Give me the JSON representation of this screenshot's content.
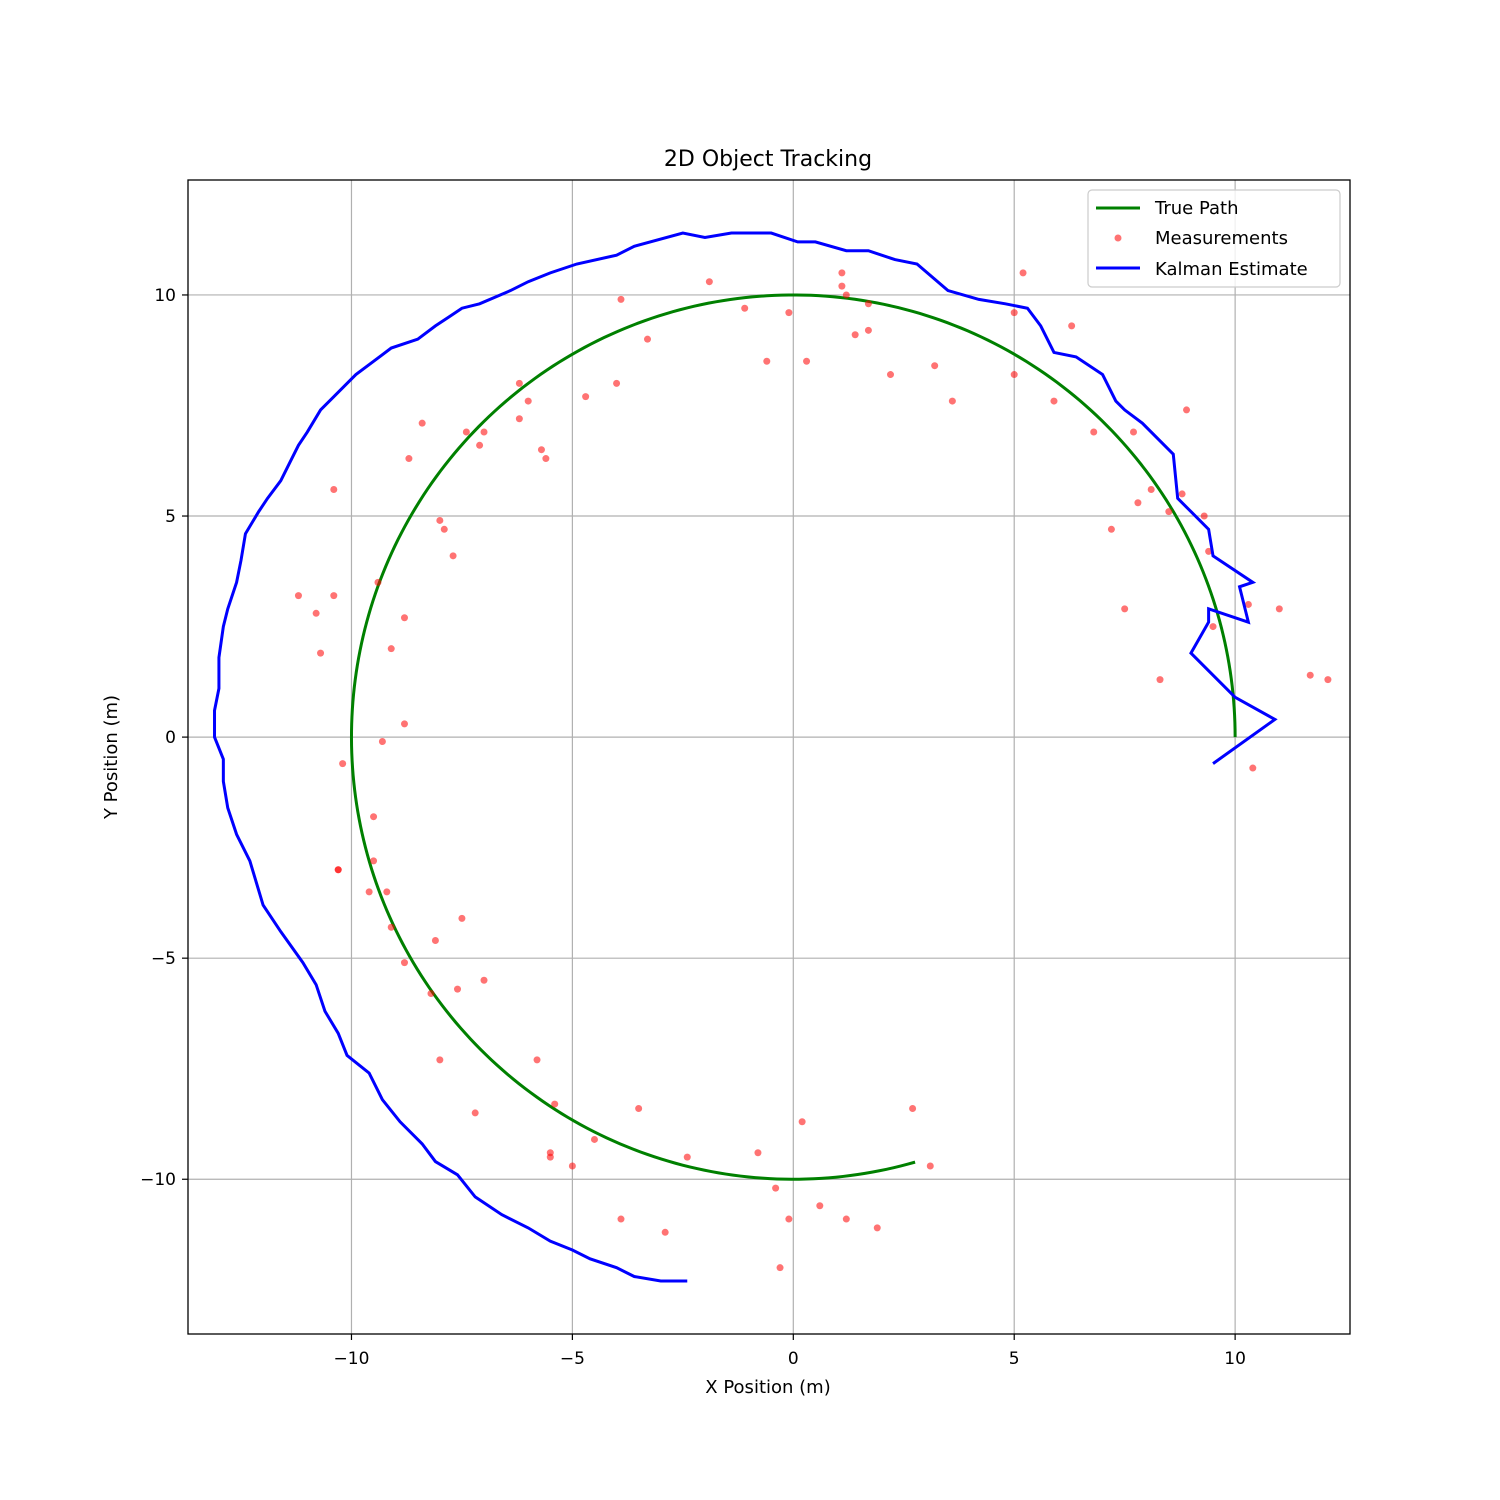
{
  "chart_data": {
    "type": "line",
    "title": "2D Object Tracking",
    "xlabel": "X Position (m)",
    "ylabel": "Y Position (m)",
    "xlim": [
      -13.7,
      12.6
    ],
    "ylim": [
      -13.5,
      12.6
    ],
    "xticks": [
      -10,
      -5,
      0,
      5,
      10
    ],
    "yticks": [
      -10,
      -5,
      0,
      5,
      10
    ],
    "xtick_labels": [
      "−10",
      "−5",
      "0",
      "5",
      "10"
    ],
    "ytick_labels": [
      "−10",
      "−5",
      "0",
      "5",
      "10"
    ],
    "grid": true,
    "legend_position": "top-right",
    "colors": {
      "true_path": "#008000",
      "measurements": "#ff0000",
      "kalman": "#0000ff"
    },
    "series": [
      {
        "name": "True Path",
        "kind": "line",
        "radius": 10,
        "angle_start_deg": 0,
        "angle_end_deg": 286
      },
      {
        "name": "Measurements",
        "kind": "scatter",
        "points": [
          [
            1.1,
            10.5
          ],
          [
            1.1,
            10.2
          ],
          [
            1.2,
            10.0
          ],
          [
            5.2,
            10.5
          ],
          [
            -1.9,
            10.3
          ],
          [
            -3.9,
            9.9
          ],
          [
            -1.1,
            9.7
          ],
          [
            -0.1,
            9.6
          ],
          [
            5.0,
            9.6
          ],
          [
            6.3,
            9.3
          ],
          [
            1.4,
            9.1
          ],
          [
            1.7,
            9.2
          ],
          [
            1.7,
            9.8
          ],
          [
            -3.3,
            9.0
          ],
          [
            -0.6,
            8.5
          ],
          [
            0.3,
            8.5
          ],
          [
            3.2,
            8.4
          ],
          [
            2.2,
            8.2
          ],
          [
            5.0,
            8.2
          ],
          [
            -4.0,
            8.0
          ],
          [
            -6.2,
            8.0
          ],
          [
            -4.7,
            7.7
          ],
          [
            3.6,
            7.6
          ],
          [
            5.9,
            7.6
          ],
          [
            -6.0,
            7.6
          ],
          [
            -6.2,
            7.2
          ],
          [
            -8.4,
            7.1
          ],
          [
            -7.4,
            6.9
          ],
          [
            -7.0,
            6.9
          ],
          [
            -7.1,
            6.6
          ],
          [
            6.8,
            6.9
          ],
          [
            7.7,
            6.9
          ],
          [
            8.9,
            7.4
          ],
          [
            -5.7,
            6.5
          ],
          [
            -5.6,
            6.3
          ],
          [
            -8.7,
            6.3
          ],
          [
            -10.4,
            5.6
          ],
          [
            8.1,
            5.6
          ],
          [
            8.8,
            5.5
          ],
          [
            7.8,
            5.3
          ],
          [
            8.5,
            5.1
          ],
          [
            9.3,
            5.0
          ],
          [
            -8.0,
            4.9
          ],
          [
            -7.9,
            4.7
          ],
          [
            7.2,
            4.7
          ],
          [
            -7.7,
            4.1
          ],
          [
            9.4,
            4.2
          ],
          [
            -9.4,
            3.5
          ],
          [
            -11.2,
            3.2
          ],
          [
            -10.4,
            3.2
          ],
          [
            -10.8,
            2.8
          ],
          [
            -8.8,
            2.7
          ],
          [
            7.5,
            2.9
          ],
          [
            10.3,
            3.0
          ],
          [
            11.0,
            2.9
          ],
          [
            9.5,
            2.5
          ],
          [
            -9.1,
            2.0
          ],
          [
            -10.7,
            1.9
          ],
          [
            8.3,
            1.3
          ],
          [
            11.7,
            1.4
          ],
          [
            12.1,
            1.3
          ],
          [
            -8.8,
            0.3
          ],
          [
            -9.3,
            -0.1
          ],
          [
            -10.2,
            -0.6
          ],
          [
            10.4,
            -0.7
          ],
          [
            -9.5,
            -1.8
          ],
          [
            -9.5,
            -2.8
          ],
          [
            -10.3,
            -3.0
          ],
          [
            -10.3,
            -3.0
          ],
          [
            -9.6,
            -3.5
          ],
          [
            -9.2,
            -3.5
          ],
          [
            -9.1,
            -4.3
          ],
          [
            -7.5,
            -4.1
          ],
          [
            -8.1,
            -4.6
          ],
          [
            -8.8,
            -5.1
          ],
          [
            -7.0,
            -5.5
          ],
          [
            -7.6,
            -5.7
          ],
          [
            -8.2,
            -5.8
          ],
          [
            -8.0,
            -7.3
          ],
          [
            -5.8,
            -7.3
          ],
          [
            -7.2,
            -8.5
          ],
          [
            -5.4,
            -8.3
          ],
          [
            -3.5,
            -8.4
          ],
          [
            2.7,
            -8.4
          ],
          [
            0.2,
            -8.7
          ],
          [
            -4.5,
            -9.1
          ],
          [
            -5.5,
            -9.4
          ],
          [
            -5.5,
            -9.5
          ],
          [
            -2.4,
            -9.5
          ],
          [
            -0.8,
            -9.4
          ],
          [
            -5.0,
            -9.7
          ],
          [
            3.1,
            -9.7
          ],
          [
            -0.4,
            -10.2
          ],
          [
            -3.9,
            -10.9
          ],
          [
            -0.1,
            -10.9
          ],
          [
            0.6,
            -10.6
          ],
          [
            1.2,
            -10.9
          ],
          [
            -2.9,
            -11.2
          ],
          [
            1.9,
            -11.1
          ],
          [
            -0.3,
            -12.0
          ]
        ]
      },
      {
        "name": "Kalman Estimate",
        "kind": "line",
        "points": [
          [
            9.5,
            -0.6
          ],
          [
            10.9,
            0.4
          ],
          [
            10.0,
            0.9
          ],
          [
            9.0,
            1.9
          ],
          [
            9.4,
            2.6
          ],
          [
            9.4,
            2.9
          ],
          [
            10.3,
            2.6
          ],
          [
            10.1,
            3.4
          ],
          [
            10.4,
            3.5
          ],
          [
            9.5,
            4.1
          ],
          [
            9.4,
            4.7
          ],
          [
            9.0,
            5.1
          ],
          [
            8.7,
            5.4
          ],
          [
            8.6,
            6.4
          ],
          [
            7.9,
            7.1
          ],
          [
            7.5,
            7.4
          ],
          [
            7.3,
            7.6
          ],
          [
            7.0,
            8.2
          ],
          [
            6.4,
            8.6
          ],
          [
            5.9,
            8.7
          ],
          [
            5.6,
            9.3
          ],
          [
            5.3,
            9.7
          ],
          [
            4.8,
            9.8
          ],
          [
            4.2,
            9.9
          ],
          [
            3.5,
            10.1
          ],
          [
            2.8,
            10.7
          ],
          [
            2.3,
            10.8
          ],
          [
            1.7,
            11.0
          ],
          [
            1.2,
            11.0
          ],
          [
            0.5,
            11.2
          ],
          [
            0.1,
            11.2
          ],
          [
            -0.5,
            11.4
          ],
          [
            -1.4,
            11.4
          ],
          [
            -2.0,
            11.3
          ],
          [
            -2.5,
            11.4
          ],
          [
            -3.6,
            11.1
          ],
          [
            -4.0,
            10.9
          ],
          [
            -4.9,
            10.7
          ],
          [
            -5.5,
            10.5
          ],
          [
            -6.0,
            10.3
          ],
          [
            -6.4,
            10.1
          ],
          [
            -7.1,
            9.8
          ],
          [
            -7.5,
            9.7
          ],
          [
            -7.8,
            9.5
          ],
          [
            -8.1,
            9.3
          ],
          [
            -8.5,
            9.0
          ],
          [
            -9.1,
            8.8
          ],
          [
            -9.5,
            8.5
          ],
          [
            -9.9,
            8.2
          ],
          [
            -10.4,
            7.7
          ],
          [
            -10.7,
            7.4
          ],
          [
            -11.0,
            6.9
          ],
          [
            -11.2,
            6.6
          ],
          [
            -11.4,
            6.2
          ],
          [
            -11.6,
            5.8
          ],
          [
            -11.9,
            5.4
          ],
          [
            -12.1,
            5.1
          ],
          [
            -12.4,
            4.6
          ],
          [
            -12.5,
            4.0
          ],
          [
            -12.6,
            3.5
          ],
          [
            -12.8,
            2.9
          ],
          [
            -12.9,
            2.5
          ],
          [
            -13.0,
            1.8
          ],
          [
            -13.0,
            1.1
          ],
          [
            -13.1,
            0.6
          ],
          [
            -13.1,
            0.0
          ],
          [
            -12.9,
            -0.5
          ],
          [
            -12.9,
            -1.0
          ],
          [
            -12.8,
            -1.6
          ],
          [
            -12.6,
            -2.2
          ],
          [
            -12.3,
            -2.8
          ],
          [
            -12.0,
            -3.8
          ],
          [
            -11.6,
            -4.4
          ],
          [
            -11.1,
            -5.1
          ],
          [
            -10.8,
            -5.6
          ],
          [
            -10.6,
            -6.2
          ],
          [
            -10.3,
            -6.7
          ],
          [
            -10.1,
            -7.2
          ],
          [
            -9.6,
            -7.6
          ],
          [
            -9.3,
            -8.2
          ],
          [
            -8.9,
            -8.7
          ],
          [
            -8.4,
            -9.2
          ],
          [
            -8.1,
            -9.6
          ],
          [
            -7.6,
            -9.9
          ],
          [
            -7.2,
            -10.4
          ],
          [
            -6.6,
            -10.8
          ],
          [
            -6.0,
            -11.1
          ],
          [
            -5.5,
            -11.4
          ],
          [
            -5.0,
            -11.6
          ],
          [
            -4.6,
            -11.8
          ],
          [
            -4.0,
            -12.0
          ],
          [
            -3.6,
            -12.2
          ],
          [
            -3.0,
            -12.3
          ],
          [
            -2.4,
            -12.3
          ]
        ]
      }
    ]
  }
}
